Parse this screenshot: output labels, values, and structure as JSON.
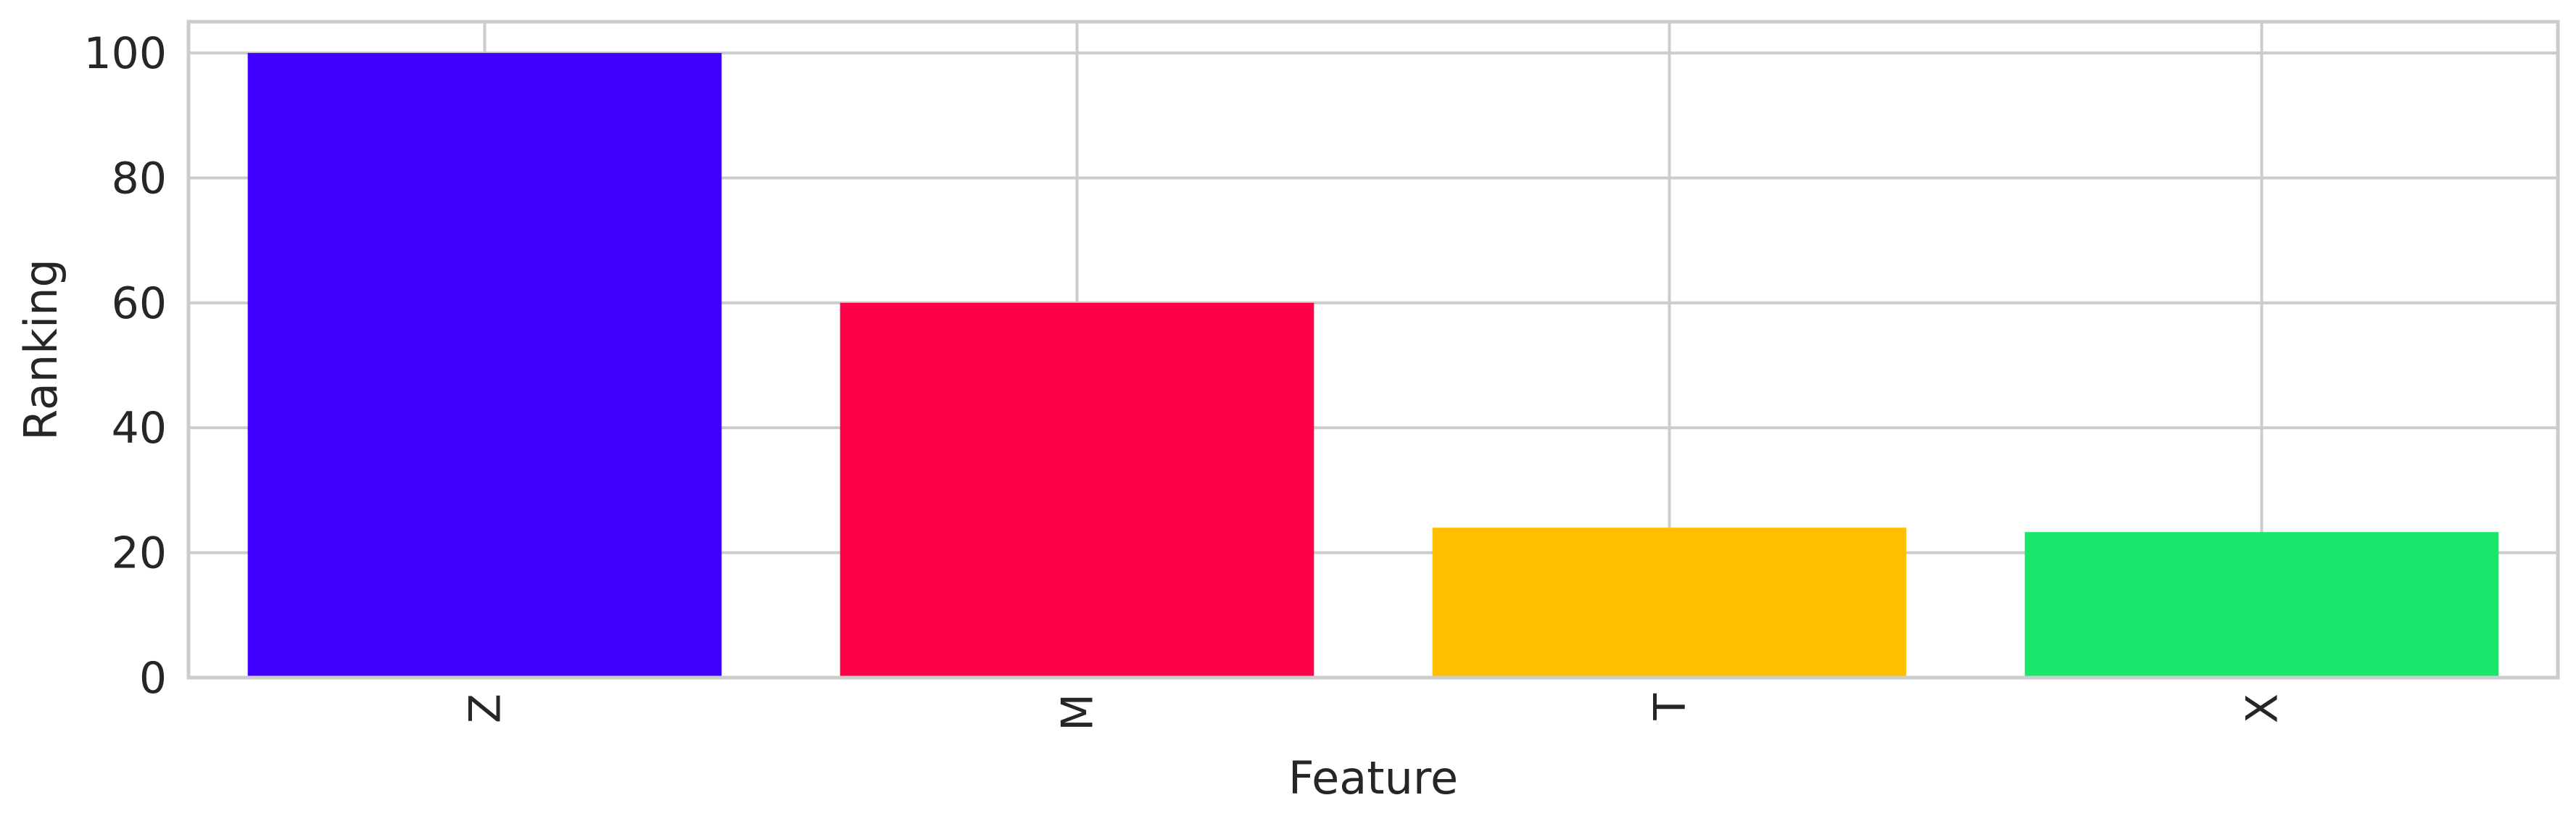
{
  "chart_data": {
    "type": "bar",
    "categories": [
      "Z",
      "M",
      "T",
      "X"
    ],
    "values": [
      100.0,
      60.0,
      24.0,
      23.3
    ],
    "colors": [
      "#4000ff",
      "#ff0048",
      "#ffbf00",
      "#1ae66b"
    ],
    "title": "",
    "xlabel": "Feature",
    "ylabel": "Ranking",
    "ylim": [
      0,
      105
    ],
    "yticks": [
      0,
      20,
      40,
      60,
      80,
      100
    ],
    "grid": true,
    "x_tick_rotation": "vertical",
    "style": {
      "grid_color": "#cccccc",
      "axes_edge_color": "#cccccc",
      "text_color": "#262626",
      "background": "#ffffff"
    }
  }
}
